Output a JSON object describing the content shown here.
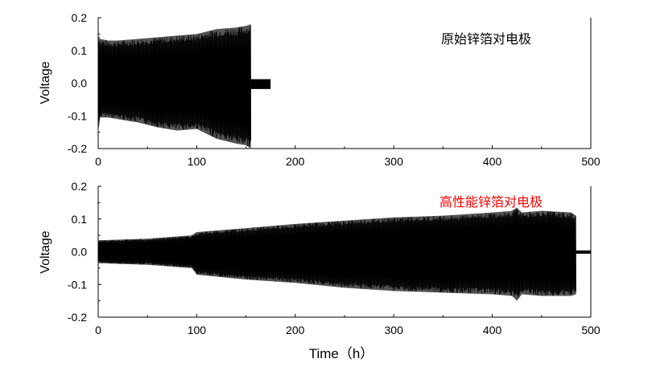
{
  "chart_data": [
    {
      "type": "line",
      "ylabel": "Voltage",
      "xlim": [
        0,
        500
      ],
      "ylim": [
        -0.2,
        0.2
      ],
      "xticks": [
        "0",
        "100",
        "200",
        "300",
        "400",
        "500"
      ],
      "yticks": [
        "0.2",
        "0.1",
        "0.0",
        "-0.1",
        "-0.2"
      ],
      "annotation": "原始锌箔对电极",
      "annotation_color": "#000000",
      "envelope": {
        "x": [
          0,
          2,
          10,
          20,
          40,
          60,
          80,
          100,
          120,
          140,
          150,
          155
        ],
        "upper": [
          0.15,
          0.135,
          0.13,
          0.13,
          0.135,
          0.14,
          0.145,
          0.15,
          0.165,
          0.17,
          0.175,
          0.18
        ],
        "lower": [
          -0.15,
          -0.105,
          -0.105,
          -0.11,
          -0.12,
          -0.135,
          -0.145,
          -0.14,
          -0.17,
          -0.185,
          -0.19,
          -0.2
        ]
      },
      "tail": {
        "x": [
          155,
          175
        ],
        "upper": 0.012,
        "lower": -0.018
      }
    },
    {
      "type": "line",
      "ylabel": "Voltage",
      "xlabel": "Time（h）",
      "xlim": [
        0,
        500
      ],
      "ylim": [
        -0.2,
        0.2
      ],
      "xticks": [
        "0",
        "100",
        "200",
        "300",
        "400",
        "500"
      ],
      "yticks": [
        "0.2",
        "0.1",
        "0.0",
        "-0.1",
        "-0.2"
      ],
      "annotation": "高性能锌箔对电极",
      "annotation_color": "#ff0000",
      "envelope": {
        "x": [
          0,
          50,
          95,
          100,
          150,
          200,
          250,
          300,
          350,
          400,
          420,
          425,
          430,
          450,
          480,
          485
        ],
        "upper": [
          0.035,
          0.04,
          0.05,
          0.06,
          0.072,
          0.085,
          0.095,
          0.105,
          0.11,
          0.12,
          0.125,
          0.135,
          0.12,
          0.125,
          0.12,
          0.11
        ],
        "lower": [
          -0.035,
          -0.04,
          -0.05,
          -0.07,
          -0.085,
          -0.095,
          -0.11,
          -0.12,
          -0.125,
          -0.13,
          -0.135,
          -0.15,
          -0.13,
          -0.135,
          -0.135,
          -0.13
        ]
      },
      "tail": {
        "x": [
          485,
          500
        ],
        "upper": 0.004,
        "lower": -0.006
      }
    }
  ]
}
